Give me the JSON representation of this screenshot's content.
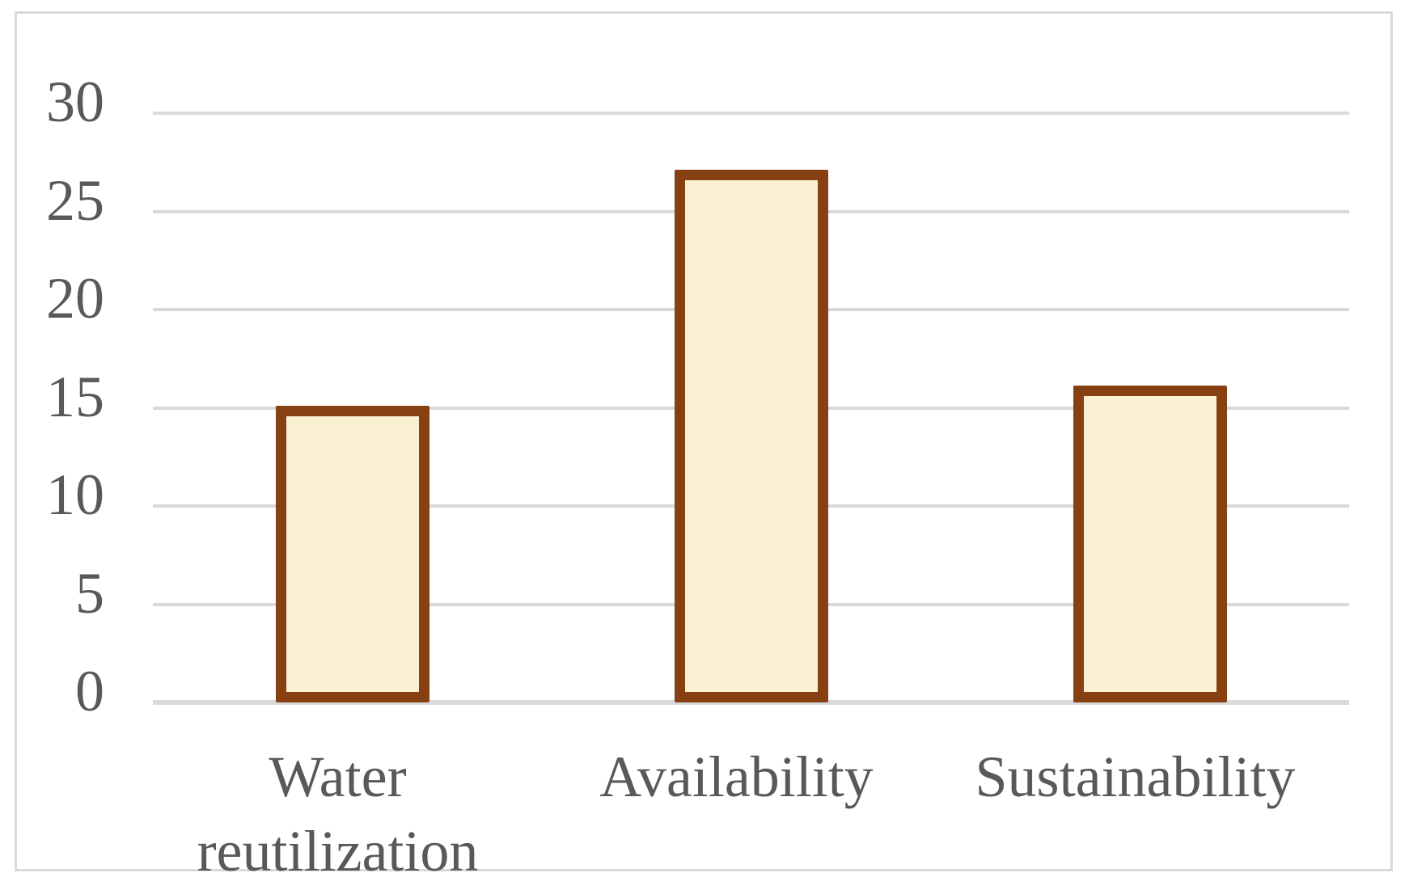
{
  "chart_data": {
    "type": "bar",
    "title": "",
    "xlabel": "",
    "ylabel": "",
    "categories": [
      "Water reutilization",
      "Availability",
      "Sustainability"
    ],
    "values": [
      15,
      27,
      16
    ],
    "ylim": [
      0,
      30
    ],
    "yticks": [
      0,
      5,
      10,
      15,
      20,
      25,
      30
    ],
    "grid": true,
    "legend": false,
    "colors": {
      "bar_fill": "#FCF0D2",
      "bar_border": "#864012",
      "gridline": "#D9D9D9",
      "axis_line": "#D9D9D9",
      "tick_label": "#595959",
      "category_label": "#595959",
      "frame_border": "#D9D9D9",
      "background": "#FFFFFF"
    }
  }
}
